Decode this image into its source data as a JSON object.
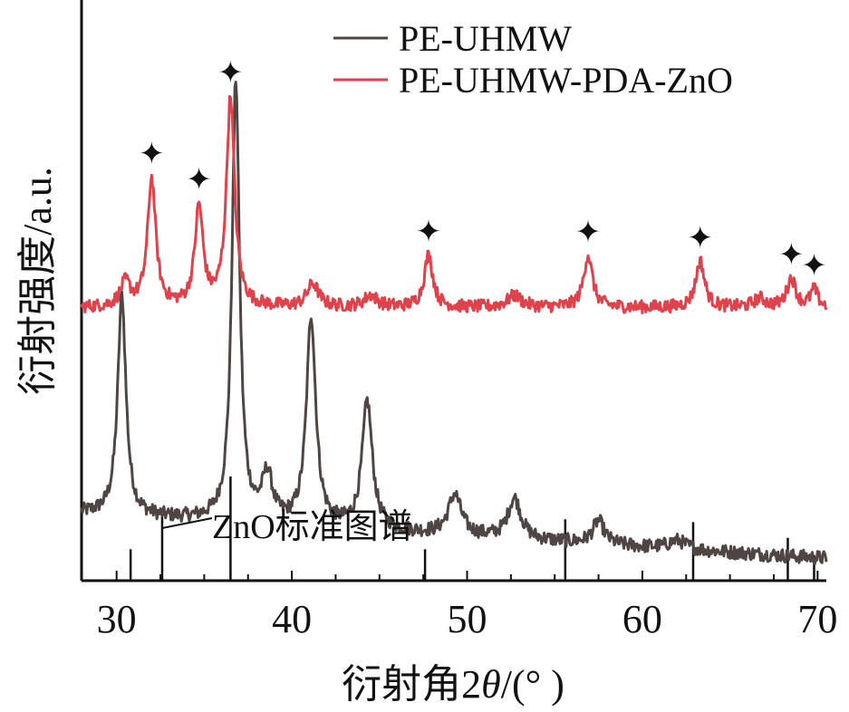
{
  "chart_data": {
    "type": "line",
    "title": "",
    "xlabel": "衍射角2θ/(° )",
    "xlabel_parts": [
      "衍射角2",
      "θ",
      "/(° )"
    ],
    "ylabel": "衍射强度/a.u.",
    "xlim": [
      28,
      70.5
    ],
    "xticks": [
      30,
      40,
      50,
      60,
      70
    ],
    "y_ticks_shown": false,
    "grid": false,
    "legend_position": "top-right",
    "series": [
      {
        "name": "PE-UHMW",
        "color": "#4f4643",
        "baseline": 0.115,
        "noise": 0.012,
        "background_slope": -0.0018,
        "peaks": [
          {
            "x": 30.3,
            "height": 0.38,
            "width": 0.28
          },
          {
            "x": 36.8,
            "height": 0.76,
            "width": 0.26
          },
          {
            "x": 38.6,
            "height": 0.08,
            "width": 0.35
          },
          {
            "x": 41.1,
            "height": 0.36,
            "width": 0.32
          },
          {
            "x": 44.3,
            "height": 0.22,
            "width": 0.35
          },
          {
            "x": 49.3,
            "height": 0.07,
            "width": 0.45
          },
          {
            "x": 52.7,
            "height": 0.07,
            "width": 0.45
          },
          {
            "x": 57.5,
            "height": 0.04,
            "width": 0.4
          },
          {
            "x": 62.0,
            "height": 0.015,
            "width": 0.6
          }
        ]
      },
      {
        "name": "PE-UHMW-PDA-ZnO",
        "color": "#e0414a",
        "baseline": 0.47,
        "noise": 0.011,
        "background_slope": 0,
        "peaks": [
          {
            "x": 30.5,
            "height": 0.04,
            "width": 0.35
          },
          {
            "x": 32.0,
            "height": 0.22,
            "width": 0.28
          },
          {
            "x": 34.7,
            "height": 0.17,
            "width": 0.28
          },
          {
            "x": 36.5,
            "height": 0.36,
            "width": 0.28
          },
          {
            "x": 41.2,
            "height": 0.04,
            "width": 0.4
          },
          {
            "x": 44.5,
            "height": 0.02,
            "width": 0.45
          },
          {
            "x": 47.8,
            "height": 0.09,
            "width": 0.3
          },
          {
            "x": 52.7,
            "height": 0.02,
            "width": 0.5
          },
          {
            "x": 56.9,
            "height": 0.09,
            "width": 0.3
          },
          {
            "x": 63.3,
            "height": 0.08,
            "width": 0.3
          },
          {
            "x": 66.7,
            "height": 0.015,
            "width": 0.4
          },
          {
            "x": 68.5,
            "height": 0.05,
            "width": 0.3
          },
          {
            "x": 69.8,
            "height": 0.03,
            "width": 0.25
          }
        ]
      }
    ],
    "reference_pattern": {
      "label": "ZnO标准图谱",
      "positions": [
        30.8,
        32.6,
        36.5,
        47.6,
        55.6,
        62.9,
        68.3,
        69.8
      ],
      "relative_heights": [
        0.22,
        0.48,
        0.73,
        0.22,
        0.43,
        0.41,
        0.3,
        0.18
      ],
      "labeled_index": 1
    },
    "peak_markers": {
      "symbol": "✦",
      "positions": [
        32.0,
        34.7,
        36.5,
        47.8,
        56.9,
        63.3,
        68.5,
        69.8
      ]
    }
  }
}
